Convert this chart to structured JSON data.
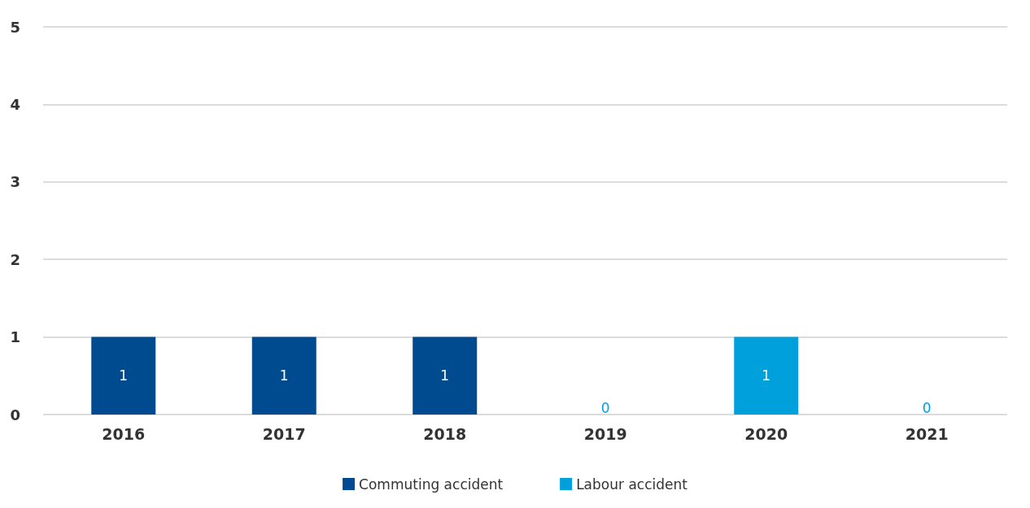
{
  "chart_data": {
    "type": "bar",
    "stacked": true,
    "categories": [
      "2016",
      "2017",
      "2018",
      "2019",
      "2020",
      "2021"
    ],
    "series": [
      {
        "name": "Commuting accident",
        "color": "#004a8f",
        "values": [
          1,
          1,
          1,
          0,
          0,
          0
        ],
        "value_labels": [
          "1",
          "1",
          "1",
          null,
          null,
          null
        ]
      },
      {
        "name": "Labour accident",
        "color": "#00a0dc",
        "values": [
          0,
          0,
          0,
          0,
          1,
          0
        ],
        "value_labels": [
          null,
          null,
          null,
          "0",
          "1",
          "0"
        ]
      }
    ],
    "ylim": [
      0,
      5
    ],
    "yticks": [
      0,
      1,
      2,
      3,
      4,
      5
    ],
    "grid": "y",
    "legend": "bottom"
  }
}
